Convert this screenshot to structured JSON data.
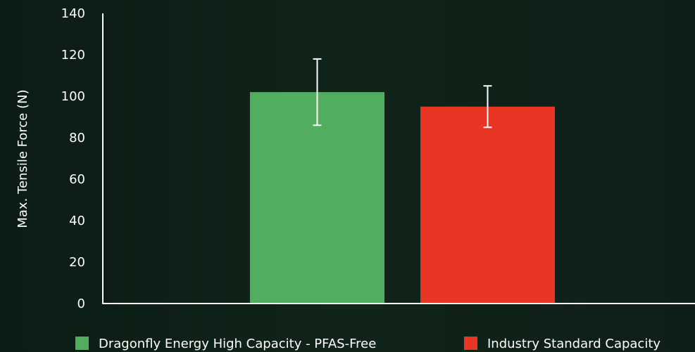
{
  "chart_data": {
    "type": "bar",
    "ylabel": "Max. Tensile Force (N)",
    "ylim": [
      0,
      140
    ],
    "yticks": [
      0,
      20,
      40,
      60,
      80,
      100,
      120,
      140
    ],
    "grid": false,
    "legend_position": "bottom",
    "series": [
      {
        "name": "Dragonfly Energy High Capacity - PFAS-Free",
        "value": 102,
        "error_low": 86,
        "error_high": 118,
        "color": "#50ae5e"
      },
      {
        "name": "Industry Standard Capacity",
        "value": 95,
        "error_low": 85,
        "error_high": 105,
        "color": "#e83524"
      }
    ]
  }
}
